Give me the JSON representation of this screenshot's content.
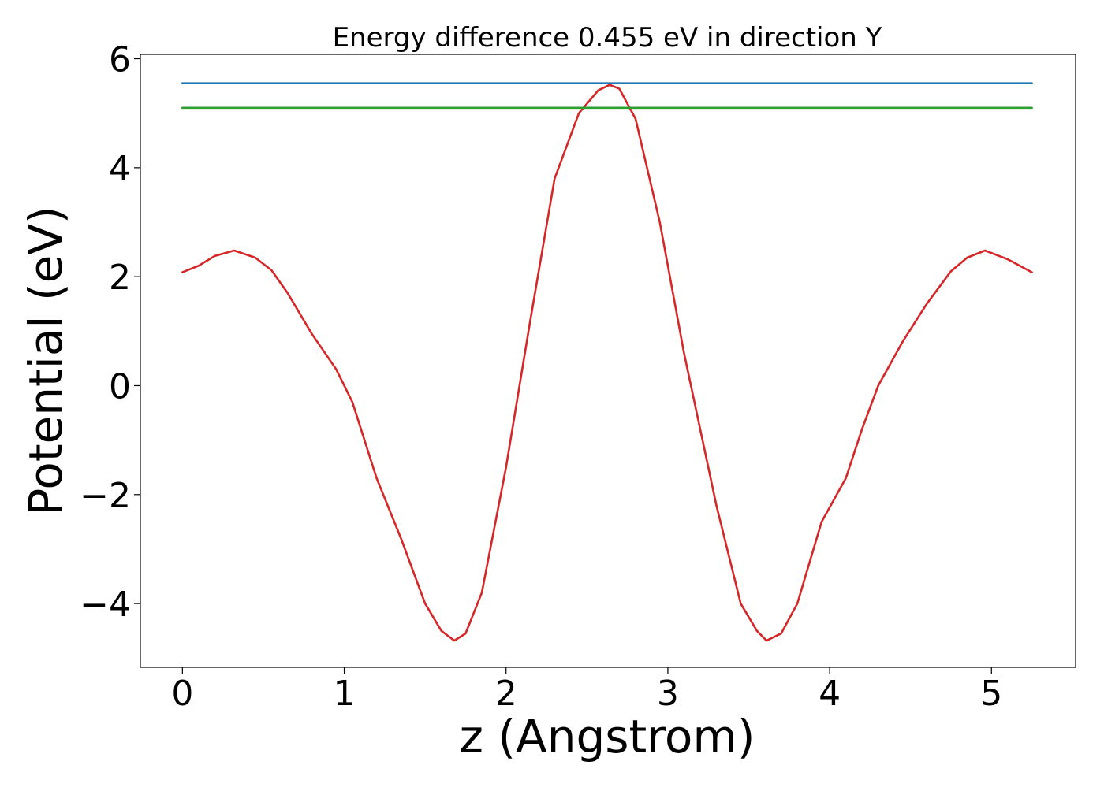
{
  "chart_data": {
    "type": "line",
    "title": "Energy difference 0.455 eV in direction Y",
    "xlabel": "z (Angstrom)",
    "ylabel": "Potential (eV)",
    "xlim": [
      -0.26,
      5.52
    ],
    "ylim": [
      -5.17,
      6.08
    ],
    "xticks": [
      0,
      1,
      2,
      3,
      4,
      5
    ],
    "xtick_labels": [
      "0",
      "1",
      "2",
      "3",
      "4",
      "5"
    ],
    "yticks": [
      -4,
      -2,
      0,
      2,
      4,
      6
    ],
    "ytick_labels": [
      "−4",
      "−2",
      "0",
      "2",
      "4",
      "6"
    ],
    "grid": false,
    "series": [
      {
        "color": "#d62728",
        "x": [
          0.0,
          0.1,
          0.2,
          0.32,
          0.45,
          0.55,
          0.65,
          0.8,
          0.95,
          1.05,
          1.2,
          1.35,
          1.5,
          1.6,
          1.68,
          1.75,
          1.85,
          2.0,
          2.15,
          2.3,
          2.45,
          2.57,
          2.64,
          2.7,
          2.8,
          2.95,
          3.1,
          3.3,
          3.45,
          3.55,
          3.61,
          3.7,
          3.8,
          3.95,
          4.1,
          4.2,
          4.3,
          4.45,
          4.6,
          4.75,
          4.85,
          4.96,
          5.1,
          5.25
        ],
        "y": [
          2.08,
          2.2,
          2.38,
          2.48,
          2.35,
          2.12,
          1.7,
          0.95,
          0.3,
          -0.3,
          -1.7,
          -2.8,
          -4.0,
          -4.5,
          -4.68,
          -4.55,
          -3.8,
          -1.5,
          1.2,
          3.8,
          5.0,
          5.42,
          5.52,
          5.45,
          4.9,
          3.0,
          0.6,
          -2.2,
          -4.0,
          -4.5,
          -4.68,
          -4.55,
          -4.0,
          -2.5,
          -1.7,
          -0.8,
          0.0,
          0.8,
          1.5,
          2.1,
          2.35,
          2.48,
          2.32,
          2.08
        ]
      },
      {
        "color": "#1f77b4",
        "x": [
          0.0,
          5.25
        ],
        "y": [
          5.55,
          5.55
        ]
      },
      {
        "color": "#2ca02c",
        "x": [
          0.0,
          5.25
        ],
        "y": [
          5.1,
          5.1
        ]
      }
    ]
  }
}
